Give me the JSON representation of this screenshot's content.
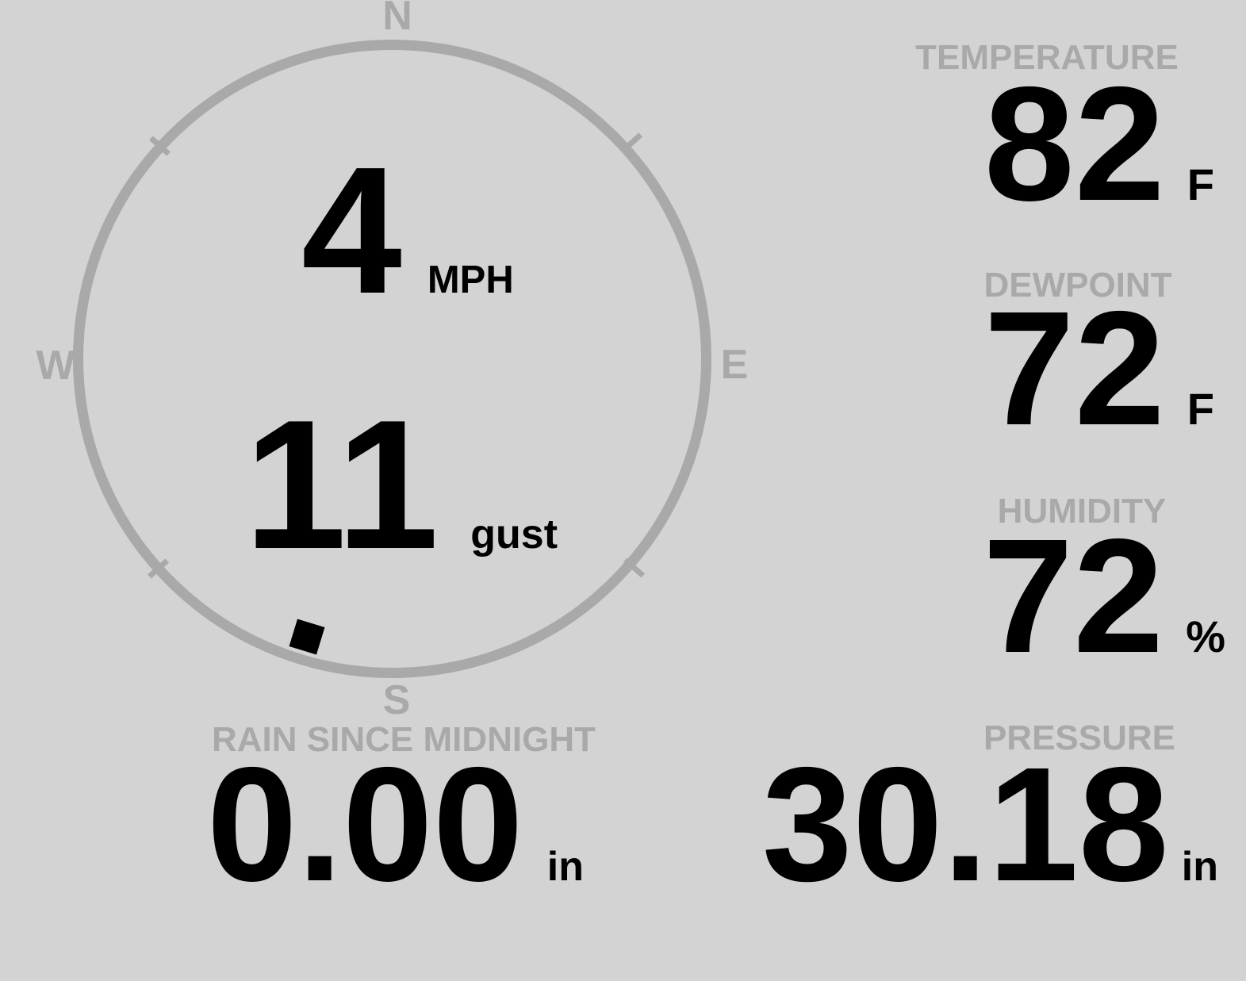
{
  "colors": {
    "background": "#d3d3d3",
    "muted_gray": "#a9a9a9",
    "ink": "#000000"
  },
  "compass": {
    "cardinals": {
      "north": "N",
      "east": "E",
      "south": "S",
      "west": "W"
    },
    "wind_speed": {
      "value": "4",
      "unit": "MPH"
    },
    "wind_gust": {
      "value": "11",
      "unit": "gust"
    },
    "direction_bearing_deg": 197
  },
  "metrics": {
    "temperature": {
      "label": "TEMPERATURE",
      "value": "82",
      "unit": "F"
    },
    "dewpoint": {
      "label": "DEWPOINT",
      "value": "72",
      "unit": "F"
    },
    "humidity": {
      "label": "HUMIDITY",
      "value": "72",
      "unit": "%"
    },
    "rain": {
      "label": "RAIN SINCE MIDNIGHT",
      "value": "0.00",
      "unit": "in"
    },
    "pressure": {
      "label": "PRESSURE",
      "value": "30.18",
      "unit": "in"
    }
  }
}
